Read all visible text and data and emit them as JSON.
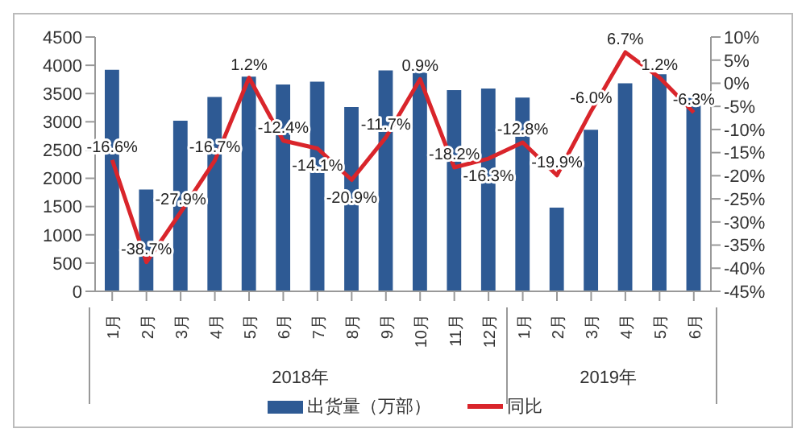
{
  "chart_data": {
    "type": "bar",
    "categories": [
      "1月",
      "2月",
      "3月",
      "4月",
      "5月",
      "6月",
      "7月",
      "8月",
      "9月",
      "10月",
      "11月",
      "12月",
      "1月",
      "2月",
      "3月",
      "4月",
      "5月",
      "6月"
    ],
    "series": [
      {
        "name": "出货量（万部）",
        "type": "bar",
        "color": "#2e5a94",
        "values": [
          3920,
          1800,
          3020,
          3440,
          3800,
          3660,
          3710,
          3260,
          3910,
          3870,
          3560,
          3590,
          3430,
          1480,
          2860,
          3680,
          3840,
          3420
        ]
      },
      {
        "name": "同比",
        "type": "line",
        "axis": "y2",
        "color": "#d9252b",
        "values": [
          -16.6,
          -38.7,
          -27.9,
          -16.7,
          1.2,
          -12.4,
          -14.1,
          -20.9,
          -11.7,
          0.9,
          -18.2,
          -16.3,
          -12.8,
          -19.9,
          -6.0,
          6.7,
          1.2,
          -6.3
        ],
        "value_labels": [
          "-16.6%",
          "-38.7%",
          "-27.9%",
          "-16.7%",
          "1.2%",
          "-12.4%",
          "-14.1%",
          "-20.9%",
          "-11.7%",
          "0.9%",
          "-18.2%",
          "-16.3%",
          "-12.8%",
          "-19.9%",
          "-6.0%",
          "6.7%",
          "1.2%",
          "-6.3%"
        ]
      }
    ],
    "annotations": [
      "2018年",
      "2019年"
    ],
    "ylim": [
      0,
      4500
    ],
    "yticks": [
      0,
      500,
      1000,
      1500,
      2000,
      2500,
      3000,
      3500,
      4000,
      4500
    ],
    "y2lim": [
      -45,
      10
    ],
    "y2ticks": [
      {
        "value": 10,
        "label": "10%"
      },
      {
        "value": 5,
        "label": "5%"
      },
      {
        "value": 0,
        "label": "0%"
      },
      {
        "value": -5,
        "label": "-5%"
      },
      {
        "value": -10,
        "label": "-10%"
      },
      {
        "value": -15,
        "label": "-15%"
      },
      {
        "value": -20,
        "label": "-20%"
      },
      {
        "value": -25,
        "label": "-25%"
      },
      {
        "value": -30,
        "label": "-30%"
      },
      {
        "value": -35,
        "label": "-35%"
      },
      {
        "value": -40,
        "label": "-40%"
      },
      {
        "value": -45,
        "label": "-45%"
      }
    ],
    "grid": false,
    "legend": "bottom"
  }
}
